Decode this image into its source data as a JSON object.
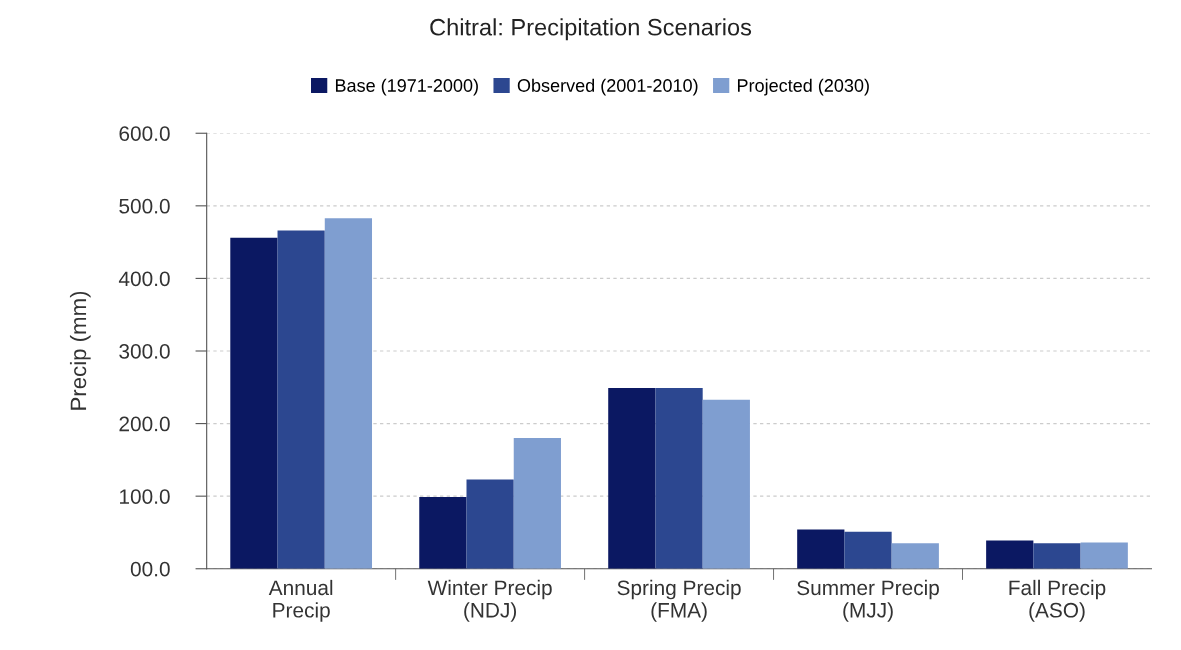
{
  "chart_data": {
    "type": "bar",
    "title": "Chitral: Precipitation Scenarios",
    "ylabel": "Precip (mm)",
    "categories": [
      "Annual\nPrecip",
      "Winter Precip\n(NDJ)",
      "Spring Precip\n(FMA)",
      "Summer Precip\n(MJJ)",
      "Fall Precip\n(ASO)"
    ],
    "series": [
      {
        "name": "Base (1971-2000)",
        "color": "#0b1862",
        "values": [
          456,
          99,
          249,
          54,
          39
        ]
      },
      {
        "name": "Observed (2001-2010)",
        "color": "#2c4790",
        "values": [
          466,
          123,
          249,
          51,
          35
        ]
      },
      {
        "name": "Projected (2030)",
        "color": "#7f9ed0",
        "values": [
          483,
          180,
          233,
          35,
          36
        ]
      }
    ],
    "ylim": [
      0,
      600
    ],
    "yticks": [
      {
        "value": 0,
        "label": "00.0"
      },
      {
        "value": 100,
        "label": "100.0"
      },
      {
        "value": 200,
        "label": "200.0"
      },
      {
        "value": 300,
        "label": "300.0"
      },
      {
        "value": 400,
        "label": "400.0"
      },
      {
        "value": 500,
        "label": "500.0"
      },
      {
        "value": 600,
        "label": "600.0"
      }
    ],
    "grid": "y",
    "legend": "top"
  }
}
